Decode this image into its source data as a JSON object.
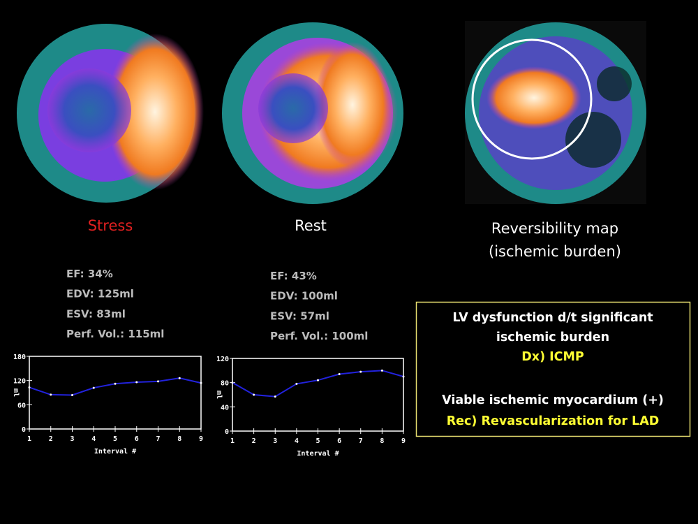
{
  "panels": [
    {
      "label": "Stress"
    },
    {
      "label": "Rest"
    },
    {
      "label_lines": [
        "Reversibility map",
        "(ischemic burden)"
      ]
    }
  ],
  "metrics": [
    [
      "EF: 34%",
      "EDV: 125ml",
      "ESV: 83ml",
      "Perf. Vol.: 115ml"
    ],
    [
      "EF: 43%",
      "EDV: 100ml",
      "ESV: 57ml",
      "Perf. Vol.: 100ml"
    ]
  ],
  "chart_data": [
    {
      "type": "line",
      "xlabel": "Interval #",
      "ylabel": "ml",
      "x": [
        1,
        2,
        3,
        4,
        5,
        6,
        7,
        8,
        9
      ],
      "xlim": [
        1,
        9
      ],
      "xticks": [
        1,
        2,
        3,
        4,
        5,
        6,
        7,
        8,
        9
      ],
      "ylim": [
        0,
        180
      ],
      "yticks": [
        0,
        60,
        120,
        180
      ],
      "series": [
        {
          "color": "#2222dd",
          "values": [
            103,
            85,
            84,
            102,
            112,
            116,
            118,
            126,
            114
          ]
        }
      ]
    },
    {
      "type": "line",
      "xlabel": "Interval #",
      "ylabel": "ml",
      "x": [
        1,
        2,
        3,
        4,
        5,
        6,
        7,
        8,
        9
      ],
      "xlim": [
        1,
        9
      ],
      "xticks": [
        1,
        2,
        3,
        4,
        5,
        6,
        7,
        8,
        9
      ],
      "ylim": [
        0,
        120
      ],
      "yticks": [
        0,
        40,
        80,
        120
      ],
      "series": [
        {
          "color": "#2222dd",
          "values": [
            80,
            60,
            57,
            78,
            84,
            94,
            98,
            100,
            90
          ]
        }
      ]
    }
  ],
  "conclusion": {
    "lines": [
      "LV dysfunction d/t significant",
      "ischemic burden",
      "Dx) ICMP",
      "Viable ischemic myocardium (+)",
      "Rec) Revascularization for LAD"
    ]
  }
}
